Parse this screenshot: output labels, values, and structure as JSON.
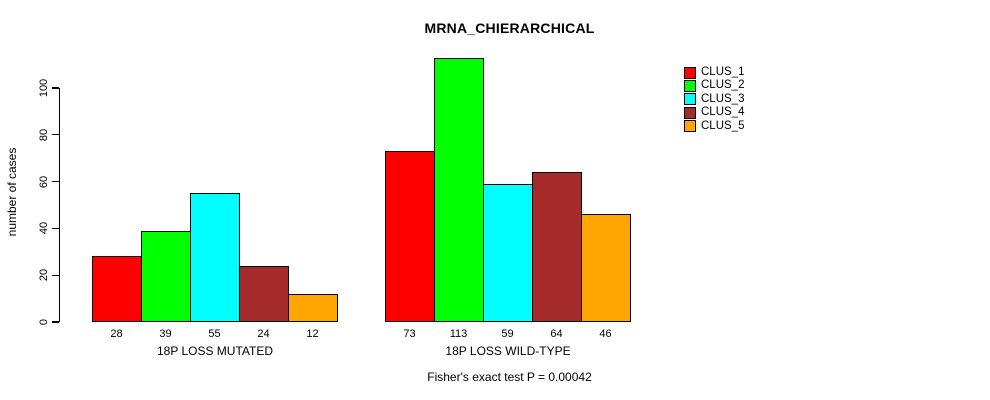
{
  "chart_data": {
    "type": "bar",
    "title": "MRNA_CHIERARCHICAL",
    "ylabel": "number of cases",
    "subtitle": "Fisher's exact test P = 0.00042",
    "categories": [
      "18P LOSS MUTATED",
      "18P LOSS WILD-TYPE"
    ],
    "series": [
      {
        "name": "CLUS_1",
        "color": "#ff0000",
        "values": [
          28,
          73
        ]
      },
      {
        "name": "CLUS_2",
        "color": "#00ff00",
        "values": [
          39,
          113
        ]
      },
      {
        "name": "CLUS_3",
        "color": "#00ffff",
        "values": [
          55,
          59
        ]
      },
      {
        "name": "CLUS_4",
        "color": "#a52a2a",
        "values": [
          24,
          64
        ]
      },
      {
        "name": "CLUS_5",
        "color": "#ffa500",
        "values": [
          12,
          46
        ]
      }
    ],
    "yticks": [
      0,
      20,
      40,
      60,
      80,
      100
    ],
    "ylim": [
      0,
      117
    ],
    "grid": false,
    "bar_value_labels": true,
    "legend_position": "top-right"
  }
}
